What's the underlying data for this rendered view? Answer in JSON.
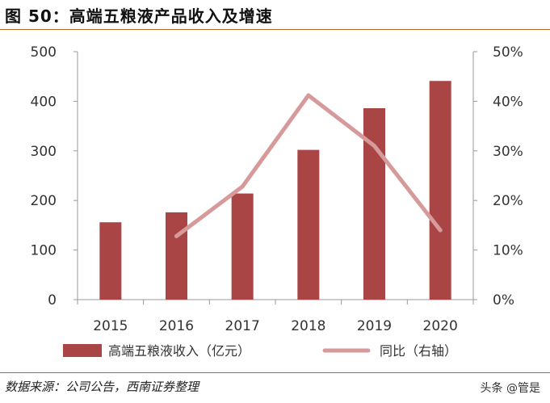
{
  "header": {
    "title": "图 50：高端五粮液产品收入及增速"
  },
  "footer": {
    "source": "数据来源：公司公告，西南证券整理",
    "watermark": "头条 @管是"
  },
  "colors": {
    "bar": "#a94545",
    "line": "#d69a9a",
    "axis": "#999999",
    "rule": "#b5651d"
  },
  "chart_data": {
    "type": "bar",
    "categories": [
      "2015",
      "2016",
      "2017",
      "2018",
      "2019",
      "2020"
    ],
    "series": [
      {
        "name": "高端五粮液收入（亿元）",
        "type": "bar",
        "axis": "left",
        "values": [
          156,
          176,
          214,
          302,
          386,
          441
        ]
      },
      {
        "name": "同比（右轴）",
        "type": "line",
        "axis": "right",
        "values": [
          null,
          12.8,
          22.8,
          41.2,
          31.0,
          14.0
        ]
      }
    ],
    "y_left": {
      "ylim": [
        0,
        500
      ],
      "ticks": [
        "0",
        "100",
        "200",
        "300",
        "400",
        "500"
      ]
    },
    "y_right": {
      "ylim": [
        0,
        50
      ],
      "ticks": [
        "0%",
        "10%",
        "20%",
        "30%",
        "40%",
        "50%"
      ]
    },
    "legend": {
      "position": "bottom"
    },
    "grid": false
  }
}
